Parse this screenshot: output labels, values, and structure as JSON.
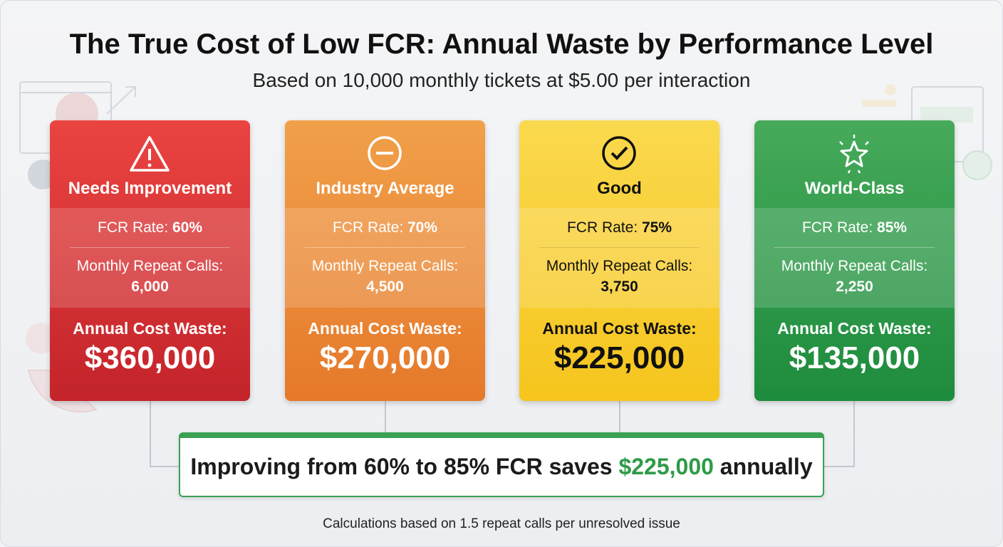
{
  "header": {
    "title": "The True Cost of Low FCR: Annual Waste by Performance Level",
    "subtitle": "Based on 10,000 monthly tickets at $5.00 per interaction"
  },
  "cards": [
    {
      "title": "Needs Improvement",
      "fcr_label": "FCR Rate:",
      "fcr_value": "60%",
      "repeat_label": "Monthly Repeat Calls:",
      "repeat_value": "6,000",
      "waste_label": "Annual Cost Waste:",
      "waste_value": "$360,000"
    },
    {
      "title": "Industry Average",
      "fcr_label": "FCR Rate:",
      "fcr_value": "70%",
      "repeat_label": "Monthly Repeat Calls:",
      "repeat_value": "4,500",
      "waste_label": "Annual Cost Waste:",
      "waste_value": "$270,000"
    },
    {
      "title": "Good",
      "fcr_label": "FCR Rate:",
      "fcr_value": "75%",
      "repeat_label": "Monthly Repeat Calls:",
      "repeat_value": "3,750",
      "waste_label": "Annual Cost Waste:",
      "waste_value": "$225,000"
    },
    {
      "title": "World-Class",
      "fcr_label": "FCR Rate:",
      "fcr_value": "85%",
      "repeat_label": "Monthly Repeat Calls:",
      "repeat_value": "2,250",
      "waste_label": "Annual Cost Waste:",
      "waste_value": "$135,000"
    }
  ],
  "summary": {
    "before": "Improving from 60% to 85% FCR saves",
    "highlight": "$225,000",
    "after": "annually"
  },
  "footnote": "Calculations based on 1.5 repeat calls per unresolved issue"
}
